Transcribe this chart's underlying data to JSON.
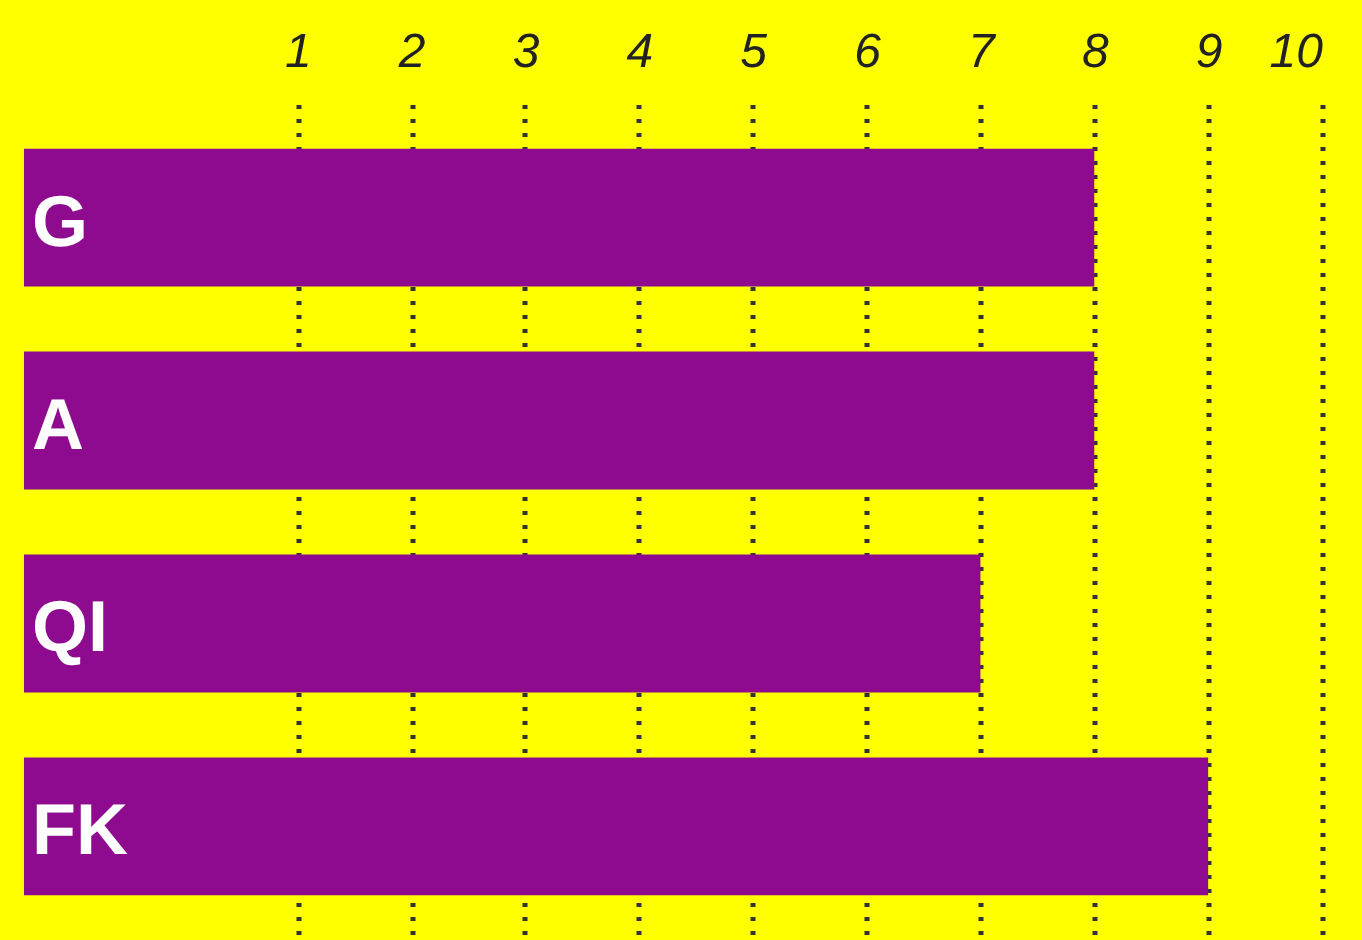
{
  "chart_data": {
    "type": "bar",
    "orientation": "horizontal",
    "categories": [
      "G",
      "A",
      "QI",
      "FK"
    ],
    "values": [
      9.4,
      9.4,
      8.4,
      10.4
    ],
    "base": [
      -1.4,
      -1.4,
      -1.4,
      -1.4
    ],
    "color": "#8e0a8e",
    "xlim": [
      -1.4,
      10
    ],
    "xticks": [
      1,
      2,
      3,
      4,
      5,
      6,
      7,
      8,
      9,
      10
    ],
    "grid": "x"
  }
}
